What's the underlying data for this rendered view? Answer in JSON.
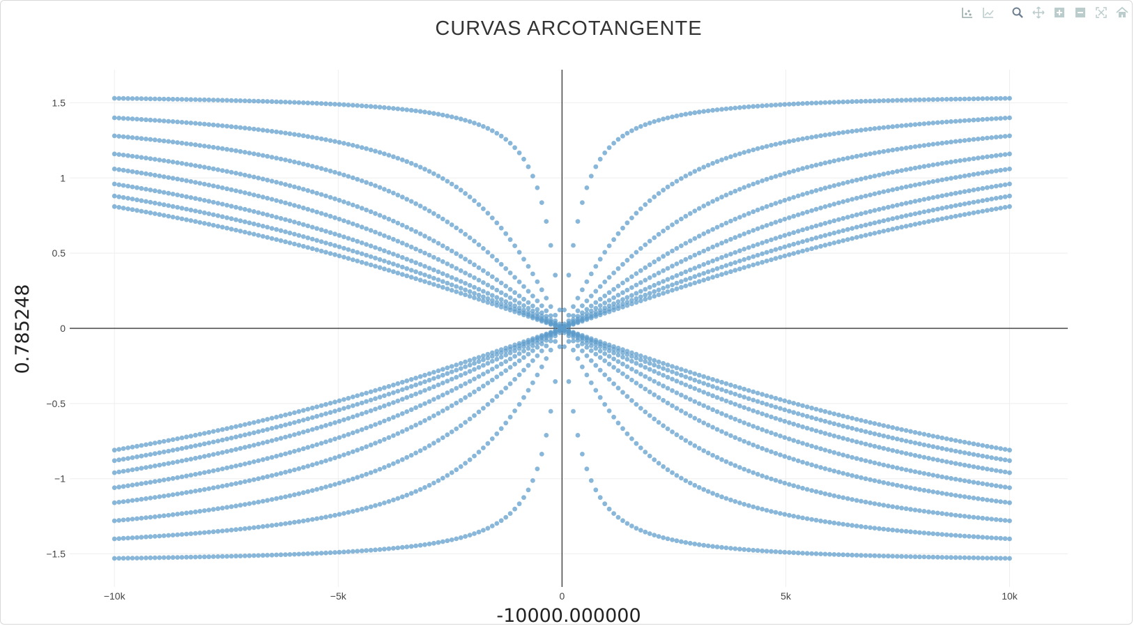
{
  "modebar": {
    "buttons": [
      {
        "name": "compare-hover-icon"
      },
      {
        "name": "closest-hover-icon"
      },
      {
        "name": "zoom-icon"
      },
      {
        "name": "pan-icon"
      },
      {
        "name": "zoom-in-icon"
      },
      {
        "name": "zoom-out-icon"
      },
      {
        "name": "autoscale-icon"
      },
      {
        "name": "reset-axes-icon"
      }
    ]
  },
  "colors": {
    "marker": "#5b9bcb",
    "grid": "#eeeeee",
    "zeroline": "#222222"
  },
  "chart_data": {
    "type": "scatter",
    "title": "CURVAS ARCOTANGENTE",
    "xlabel": "-10000.000000",
    "ylabel": "0.785248",
    "xlim": [
      -11000,
      11300
    ],
    "ylim": [
      -1.72,
      1.72
    ],
    "x_ticks": [
      {
        "value": -10000,
        "label": "−10k"
      },
      {
        "value": -5000,
        "label": "−5k"
      },
      {
        "value": 0,
        "label": "0"
      },
      {
        "value": 5000,
        "label": "5k"
      },
      {
        "value": 10000,
        "label": "10k"
      }
    ],
    "y_ticks": [
      {
        "value": 1.5,
        "label": "1.5"
      },
      {
        "value": 1,
        "label": "1"
      },
      {
        "value": 0.5,
        "label": "0.5"
      },
      {
        "value": 0,
        "label": "0"
      },
      {
        "value": -0.5,
        "label": "−0.5"
      },
      {
        "value": -1,
        "label": "−1"
      },
      {
        "value": -1.5,
        "label": "−1.5"
      }
    ],
    "grid": true,
    "marker_style": "circle",
    "x_range": [
      -10000,
      10000
    ],
    "points_per_series": 200,
    "series": [
      {
        "values_at_10k": [
          1.53,
          -1.53
        ]
      },
      {
        "values_at_10k": [
          1.4,
          -1.4
        ]
      },
      {
        "values_at_10k": [
          1.28,
          -1.28
        ]
      },
      {
        "values_at_10k": [
          1.16,
          -1.16
        ]
      },
      {
        "values_at_10k": [
          1.06,
          -1.06
        ]
      },
      {
        "values_at_10k": [
          0.96,
          -0.96
        ]
      },
      {
        "values_at_10k": [
          0.88,
          -0.88
        ]
      },
      {
        "values_at_10k": [
          0.81,
          -0.81
        ]
      }
    ]
  }
}
